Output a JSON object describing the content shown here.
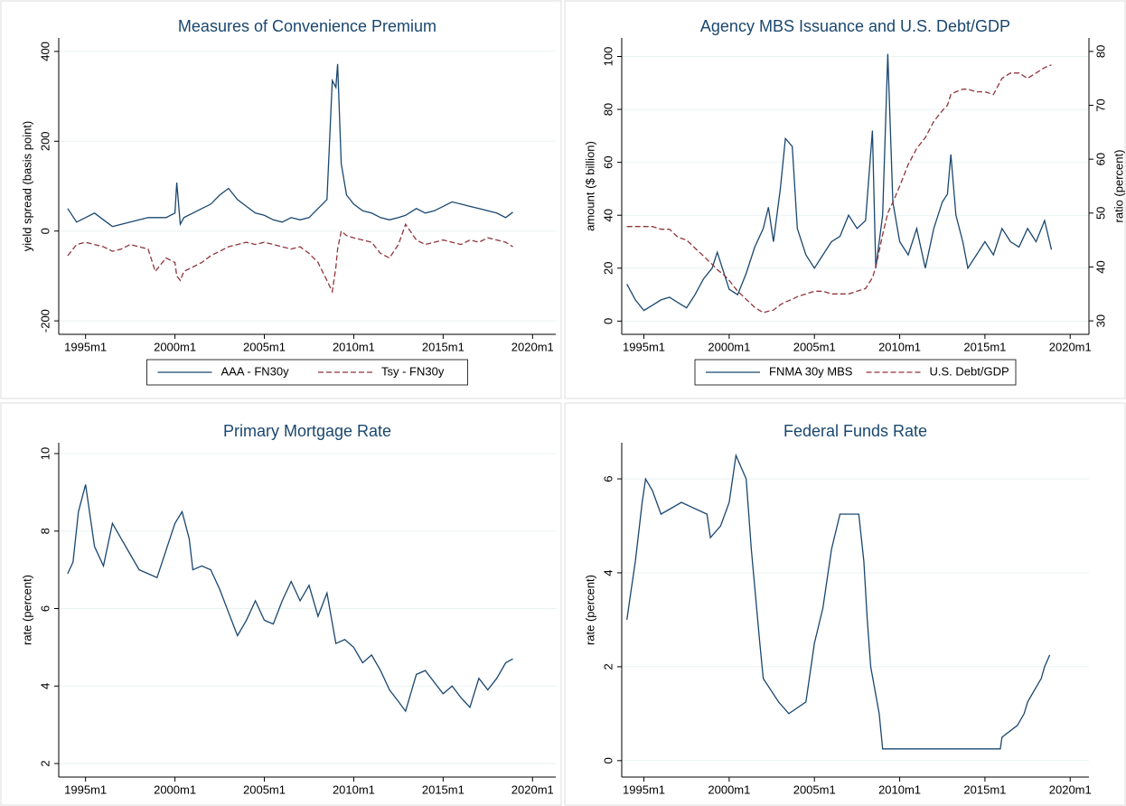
{
  "chart_data": [
    {
      "type": "line",
      "title": "Measures of Convenience Premium",
      "ylabel": "yield spread (basis point)",
      "x": [
        1994.0,
        1994.5,
        1995.0,
        1995.5,
        1996.0,
        1996.5,
        1997.0,
        1997.5,
        1998.0,
        1998.5,
        1998.9,
        1999.5,
        2000.0,
        2000.1,
        2000.3,
        2000.5,
        2001.0,
        2001.5,
        2002.0,
        2002.5,
        2003.0,
        2003.5,
        2004.0,
        2004.5,
        2005.0,
        2005.5,
        2006.0,
        2006.5,
        2007.0,
        2007.5,
        2008.0,
        2008.5,
        2008.8,
        2009.0,
        2009.1,
        2009.3,
        2009.6,
        2010.0,
        2010.5,
        2011.0,
        2011.5,
        2012.0,
        2012.5,
        2012.9,
        2013.5,
        2014.0,
        2014.5,
        2015.0,
        2015.5,
        2016.0,
        2016.5,
        2017.0,
        2017.5,
        2018.0,
        2018.5,
        2018.9
      ],
      "series": [
        {
          "name": "AAA - FN30y",
          "color": "#1a476f",
          "dash": "solid",
          "values": [
            50,
            20,
            30,
            40,
            25,
            10,
            15,
            20,
            25,
            30,
            30,
            30,
            40,
            108,
            15,
            30,
            40,
            50,
            60,
            80,
            95,
            70,
            55,
            40,
            35,
            25,
            20,
            30,
            25,
            30,
            50,
            70,
            335,
            320,
            372,
            150,
            80,
            60,
            45,
            40,
            30,
            25,
            30,
            35,
            50,
            40,
            45,
            55,
            65,
            60,
            55,
            50,
            45,
            40,
            30,
            42
          ]
        },
        {
          "name": "Tsy - FN30y",
          "color": "#90353b",
          "dash": "dashed",
          "values": [
            -55,
            -30,
            -25,
            -30,
            -35,
            -45,
            -40,
            -30,
            -35,
            -40,
            -90,
            -60,
            -70,
            -100,
            -110,
            -90,
            -80,
            -70,
            -55,
            -45,
            -35,
            -30,
            -25,
            -30,
            -25,
            -30,
            -35,
            -40,
            -35,
            -50,
            -70,
            -110,
            -135,
            -80,
            -40,
            0,
            -10,
            -15,
            -20,
            -25,
            -50,
            -60,
            -30,
            15,
            -20,
            -30,
            -25,
            -20,
            -25,
            -30,
            -20,
            -25,
            -15,
            -20,
            -25,
            -35
          ]
        }
      ],
      "xlim": [
        1993.5,
        2021.3
      ],
      "xticks": [
        {
          "value": 1995,
          "label": "1995m1"
        },
        {
          "value": 2000,
          "label": "2000m1"
        },
        {
          "value": 2005,
          "label": "2005m1"
        },
        {
          "value": 2010,
          "label": "2010m1"
        },
        {
          "value": 2015,
          "label": "2015m1"
        },
        {
          "value": 2020,
          "label": "2020m1"
        }
      ],
      "ylim": [
        -230,
        430
      ],
      "yticks": [
        -200,
        0,
        200,
        400
      ],
      "grid": true,
      "legend": "bottom"
    },
    {
      "type": "line",
      "title": "Agency MBS Issuance and U.S. Debt/GDP",
      "ylabel": "amount ($ billion)",
      "y2label": "ratio (percent)",
      "x": [
        1994.0,
        1994.5,
        1995.0,
        1995.5,
        1996.0,
        1996.5,
        1997.0,
        1997.5,
        1998.0,
        1998.5,
        1999.0,
        1999.3,
        1999.7,
        2000.0,
        2000.5,
        2001.0,
        2001.5,
        2002.0,
        2002.3,
        2002.6,
        2003.0,
        2003.3,
        2003.7,
        2004.0,
        2004.5,
        2005.0,
        2005.5,
        2006.0,
        2006.5,
        2007.0,
        2007.5,
        2008.0,
        2008.4,
        2008.6,
        2009.0,
        2009.3,
        2009.6,
        2010.0,
        2010.5,
        2011.0,
        2011.5,
        2012.0,
        2012.5,
        2012.8,
        2013.0,
        2013.3,
        2013.7,
        2014.0,
        2014.5,
        2015.0,
        2015.5,
        2016.0,
        2016.5,
        2017.0,
        2017.5,
        2018.0,
        2018.5,
        2018.9
      ],
      "series": [
        {
          "name": "FNMA 30y MBS",
          "color": "#1a476f",
          "dash": "solid",
          "axis": "y",
          "values": [
            14,
            8,
            4,
            6,
            8,
            9,
            7,
            5,
            10,
            16,
            20,
            26,
            18,
            12,
            10,
            18,
            28,
            35,
            43,
            30,
            50,
            69,
            66,
            35,
            25,
            20,
            25,
            30,
            32,
            40,
            35,
            38,
            72,
            20,
            40,
            101,
            45,
            30,
            25,
            35,
            20,
            35,
            45,
            48,
            63,
            40,
            30,
            20,
            25,
            30,
            25,
            35,
            30,
            28,
            35,
            30,
            38,
            27
          ]
        },
        {
          "name": "U.S. Debt/GDP",
          "color": "#90353b",
          "dash": "dashed",
          "axis": "y2",
          "values": [
            47.5,
            47.5,
            47.5,
            47.5,
            47,
            47,
            45.5,
            45,
            43.5,
            42,
            40.5,
            39.5,
            38.5,
            37.5,
            35.5,
            34,
            32.5,
            31.5,
            31.8,
            32,
            33,
            33.5,
            34,
            34.5,
            35,
            35.5,
            35.5,
            35,
            35,
            35,
            35.5,
            36,
            38,
            40,
            46,
            50,
            52,
            55,
            59,
            62,
            64,
            67,
            69,
            70,
            72,
            72.5,
            73,
            73,
            72.5,
            72.5,
            72,
            75,
            76,
            76,
            75,
            76,
            77,
            77.5
          ]
        }
      ],
      "xlim": [
        1993.7,
        2021.1
      ],
      "xticks": [
        {
          "value": 1995,
          "label": "1995m1"
        },
        {
          "value": 2000,
          "label": "2000m1"
        },
        {
          "value": 2005,
          "label": "2005m1"
        },
        {
          "value": 2010,
          "label": "2010m1"
        },
        {
          "value": 2015,
          "label": "2015m1"
        },
        {
          "value": 2020,
          "label": "2020m1"
        }
      ],
      "ylim": [
        -5,
        107
      ],
      "yticks": [
        0,
        20,
        40,
        60,
        80,
        100
      ],
      "y2lim": [
        27.5,
        82.5
      ],
      "y2ticks": [
        30,
        40,
        50,
        60,
        70,
        80
      ],
      "grid": true,
      "legend": "bottom"
    },
    {
      "type": "line",
      "title": "Primary Mortgage Rate",
      "ylabel": "rate (percent)",
      "x": [
        1994.0,
        1994.3,
        1994.6,
        1995.0,
        1995.5,
        1996.0,
        1996.5,
        1997.0,
        1997.5,
        1998.0,
        1998.5,
        1999.0,
        1999.5,
        2000.0,
        2000.4,
        2000.8,
        2001.0,
        2001.5,
        2002.0,
        2002.5,
        2003.0,
        2003.5,
        2004.0,
        2004.5,
        2005.0,
        2005.5,
        2006.0,
        2006.5,
        2007.0,
        2007.5,
        2008.0,
        2008.5,
        2009.0,
        2009.5,
        2010.0,
        2010.5,
        2011.0,
        2011.5,
        2012.0,
        2012.5,
        2012.9,
        2013.5,
        2014.0,
        2014.5,
        2015.0,
        2015.5,
        2016.0,
        2016.5,
        2017.0,
        2017.5,
        2018.0,
        2018.5,
        2018.9
      ],
      "series": [
        {
          "name": "rate",
          "color": "#1a476f",
          "dash": "solid",
          "values": [
            6.9,
            7.2,
            8.5,
            9.2,
            7.6,
            7.1,
            8.2,
            7.8,
            7.4,
            7.0,
            6.9,
            6.8,
            7.5,
            8.2,
            8.5,
            7.8,
            7.0,
            7.1,
            7.0,
            6.5,
            5.9,
            5.3,
            5.7,
            6.2,
            5.7,
            5.6,
            6.2,
            6.7,
            6.2,
            6.6,
            5.8,
            6.4,
            5.1,
            5.2,
            5.0,
            4.6,
            4.8,
            4.4,
            3.9,
            3.6,
            3.35,
            4.3,
            4.4,
            4.1,
            3.8,
            4.0,
            3.7,
            3.45,
            4.2,
            3.9,
            4.2,
            4.6,
            4.7
          ]
        }
      ],
      "xlim": [
        1993.5,
        2021.3
      ],
      "xticks": [
        {
          "value": 1995,
          "label": "1995m1"
        },
        {
          "value": 2000,
          "label": "2000m1"
        },
        {
          "value": 2005,
          "label": "2005m1"
        },
        {
          "value": 2010,
          "label": "2010m1"
        },
        {
          "value": 2015,
          "label": "2015m1"
        },
        {
          "value": 2020,
          "label": "2020m1"
        }
      ],
      "ylim": [
        1.65,
        10.28
      ],
      "yticks": [
        2,
        4,
        6,
        8,
        10
      ],
      "grid": true
    },
    {
      "type": "line",
      "title": "Federal Funds Rate",
      "ylabel": "rate (percent)",
      "x": [
        1994.0,
        1994.2,
        1994.5,
        1994.9,
        1995.1,
        1995.5,
        1996.0,
        1997.2,
        1998.7,
        1998.9,
        1999.5,
        2000.0,
        2000.4,
        2001.0,
        2001.3,
        2001.8,
        2002.0,
        2002.9,
        2003.5,
        2004.5,
        2005.0,
        2005.5,
        2006.0,
        2006.5,
        2007.6,
        2007.9,
        2008.1,
        2008.3,
        2008.8,
        2009.0,
        2015.9,
        2016.0,
        2016.9,
        2017.3,
        2017.5,
        2017.9,
        2018.3,
        2018.5,
        2018.8
      ],
      "series": [
        {
          "name": "rate",
          "color": "#1a476f",
          "dash": "solid",
          "values": [
            3,
            3.5,
            4.25,
            5.5,
            6,
            5.75,
            5.25,
            5.5,
            5.25,
            4.75,
            5,
            5.5,
            6.5,
            6,
            4.5,
            2.5,
            1.75,
            1.25,
            1,
            1.25,
            2.5,
            3.25,
            4.5,
            5.25,
            5.25,
            4.25,
            3,
            2,
            1,
            0.25,
            0.25,
            0.5,
            0.75,
            1,
            1.25,
            1.5,
            1.75,
            2,
            2.25
          ]
        }
      ],
      "xlim": [
        1993.7,
        2021.1
      ],
      "xticks": [
        {
          "value": 1995,
          "label": "1995m1"
        },
        {
          "value": 2000,
          "label": "2000m1"
        },
        {
          "value": 2005,
          "label": "2005m1"
        },
        {
          "value": 2010,
          "label": "2010m1"
        },
        {
          "value": 2015,
          "label": "2015m1"
        },
        {
          "value": 2020,
          "label": "2020m1"
        }
      ],
      "ylim": [
        -0.35,
        6.77
      ],
      "yticks": [
        0,
        2,
        4,
        6
      ],
      "grid": true
    }
  ]
}
